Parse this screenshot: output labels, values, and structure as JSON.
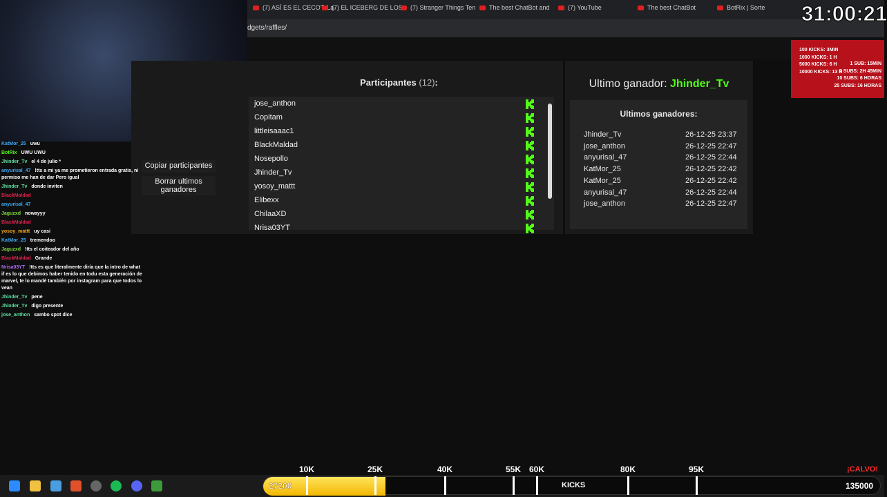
{
  "tabs": [
    "(7) ASÍ ES EL CECOT: La",
    "(7) EL ICEBERG DE LOS",
    "(7) Stranger Things Ten",
    "The best ChatBot and",
    "(7) YouTube",
    "The best ChatBot",
    "BotRix | Sorte"
  ],
  "url": "dgets/raffles/",
  "timer": "31:00:21",
  "goals_kicks": [
    "100 KICKS: 3MIN",
    "1000 KICKS: 1 H",
    "5000 KICKS: 6 H",
    "10000 KICKS: 13 H"
  ],
  "goals_subs": [
    "1 SUB: 15MIN",
    "5 SUBS: 2H 45MIN",
    "10 SUBS: 6 HORAS",
    "25 SUBS: 16 HORAS"
  ],
  "participants": {
    "title": "Participantes",
    "count": "(12)",
    "suffix": ":",
    "names": [
      "jose_anthon",
      "Copitam",
      "littleisaaac1",
      "BlackMaldad",
      "Nosepollo",
      "Jhinder_Tv",
      "yosoy_mattt",
      "Elibexx",
      "ChilaaXD",
      "Nrisa03YT"
    ]
  },
  "buttons": [
    "Copiar participantes",
    "Borrar ultimos ganadores"
  ],
  "last_winner": {
    "label": "Ultimo ganador:",
    "name": "Jhinder_Tv"
  },
  "winners": {
    "title": "Ultimos ganadores:",
    "rows": [
      [
        "Jhinder_Tv",
        "26-12-25 23:37"
      ],
      [
        "jose_anthon",
        "26-12-25 22:47"
      ],
      [
        "anyurisal_47",
        "26-12-25 22:44"
      ],
      [
        "KatMor_25",
        "26-12-25 22:42"
      ],
      [
        "KatMor_25",
        "26-12-25 22:42"
      ],
      [
        "anyurisal_47",
        "26-12-25 22:44"
      ],
      [
        "jose_anthon",
        "26-12-25 22:47"
      ]
    ]
  },
  "chat": [
    {
      "user": "KatMor_25",
      "text": "uwu",
      "color": "#3fa9f5"
    },
    {
      "user": "BotRix",
      "text": "UWU UWU",
      "color": "#53fc18"
    },
    {
      "user": "Jhinder_Tv",
      "text": "el 4 de julio *",
      "color": "#5fe0a0"
    },
    {
      "user": "anyurisal_47",
      "text": "!tts a mi ya me prometieron entrada gratis, ni permiso me han de dar Pero igual",
      "color": "#3fa9f5"
    },
    {
      "user": "Jhinder_Tv",
      "text": "donde inviten",
      "color": "#5fe0a0"
    },
    {
      "user": "BlackMaldad",
      "text": "",
      "color": "#e0204a"
    },
    {
      "user": "anyurisal_47",
      "text": "",
      "color": "#3fa9f5"
    },
    {
      "user": "Jaguzxd",
      "text": "nowayyy",
      "color": "#7ddc3a"
    },
    {
      "user": "BlackMaldad",
      "text": "",
      "color": "#e0204a"
    },
    {
      "user": "yosoy_mattt",
      "text": "uy casi",
      "color": "#f5a623"
    },
    {
      "user": "KatMor_25",
      "text": "tremendoo",
      "color": "#3fa9f5"
    },
    {
      "user": "Jaguzxd",
      "text": "!tts el coiteador del año",
      "color": "#7ddc3a"
    },
    {
      "user": "BlackMaldad",
      "text": "Grande",
      "color": "#e0204a"
    },
    {
      "user": "Nrisa03YT",
      "text": "!tts es que literalmente diría que la intro de what if es lo que debimos haber tenido en todu esta generación de marvel, te lo mandé también por instagram para que todos lo vean",
      "color": "#b06cf5"
    },
    {
      "user": "Jhinder_Tv",
      "text": "pene",
      "color": "#5fe0a0"
    },
    {
      "user": "Jhinder_Tv",
      "text": "digo presente",
      "color": "#5fe0a0"
    },
    {
      "user": "jose_anthon",
      "text": "sambo spot dice",
      "color": "#5fe0a0"
    }
  ],
  "kicks_bar": {
    "current": "27200",
    "markers": [
      "10K",
      "25K",
      "40K",
      "55K",
      "60K",
      "80K",
      "95K"
    ],
    "label": "KICKS",
    "goal": "135000",
    "alert": "¡CALVO!"
  }
}
